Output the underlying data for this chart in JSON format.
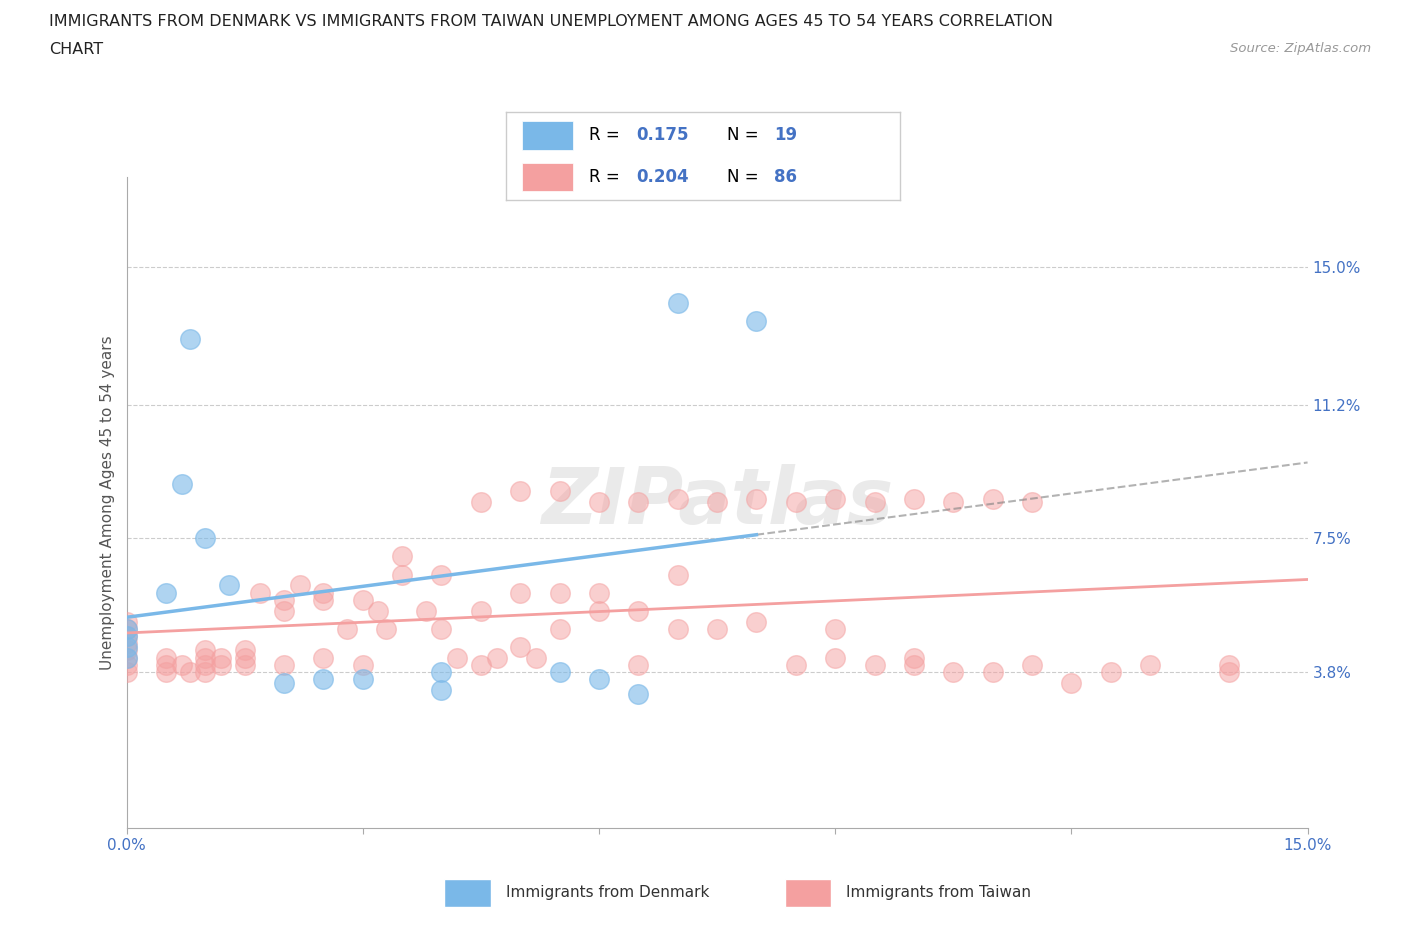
{
  "title_line1": "IMMIGRANTS FROM DENMARK VS IMMIGRANTS FROM TAIWAN UNEMPLOYMENT AMONG AGES 45 TO 54 YEARS CORRELATION",
  "title_line2": "CHART",
  "source_text": "Source: ZipAtlas.com",
  "ylabel": "Unemployment Among Ages 45 to 54 years",
  "xlim": [
    0.0,
    0.15
  ],
  "ylim": [
    -0.005,
    0.175
  ],
  "right_yticks": [
    0.038,
    0.075,
    0.112,
    0.15
  ],
  "right_yticklabels": [
    "3.8%",
    "7.5%",
    "11.2%",
    "15.0%"
  ],
  "denmark_color": "#7ab8e8",
  "taiwan_color": "#f4a0a0",
  "denmark_scatter_x": [
    0.0,
    0.0,
    0.0,
    0.0,
    0.005,
    0.007,
    0.008,
    0.01,
    0.013,
    0.02,
    0.025,
    0.03,
    0.04,
    0.04,
    0.055,
    0.06,
    0.065,
    0.07,
    0.08
  ],
  "denmark_scatter_y": [
    0.042,
    0.045,
    0.048,
    0.05,
    0.06,
    0.09,
    0.13,
    0.075,
    0.062,
    0.035,
    0.036,
    0.036,
    0.038,
    0.033,
    0.038,
    0.036,
    0.032,
    0.14,
    0.135
  ],
  "taiwan_scatter_x": [
    0.0,
    0.0,
    0.0,
    0.0,
    0.0,
    0.0,
    0.0,
    0.0,
    0.005,
    0.005,
    0.005,
    0.007,
    0.008,
    0.01,
    0.01,
    0.01,
    0.01,
    0.012,
    0.012,
    0.015,
    0.015,
    0.015,
    0.017,
    0.02,
    0.02,
    0.02,
    0.022,
    0.025,
    0.025,
    0.025,
    0.028,
    0.03,
    0.03,
    0.032,
    0.033,
    0.035,
    0.035,
    0.038,
    0.04,
    0.04,
    0.042,
    0.045,
    0.045,
    0.047,
    0.05,
    0.05,
    0.052,
    0.055,
    0.055,
    0.06,
    0.06,
    0.065,
    0.065,
    0.07,
    0.07,
    0.075,
    0.08,
    0.085,
    0.09,
    0.09,
    0.095,
    0.1,
    0.1,
    0.105,
    0.11,
    0.115,
    0.12,
    0.125,
    0.13,
    0.14,
    0.14,
    0.045,
    0.05,
    0.055,
    0.06,
    0.065,
    0.07,
    0.075,
    0.08,
    0.085,
    0.09,
    0.095,
    0.1,
    0.105,
    0.11,
    0.115
  ],
  "taiwan_scatter_y": [
    0.038,
    0.04,
    0.042,
    0.044,
    0.046,
    0.048,
    0.05,
    0.052,
    0.038,
    0.04,
    0.042,
    0.04,
    0.038,
    0.04,
    0.042,
    0.044,
    0.038,
    0.04,
    0.042,
    0.04,
    0.042,
    0.044,
    0.06,
    0.055,
    0.058,
    0.04,
    0.062,
    0.06,
    0.058,
    0.042,
    0.05,
    0.058,
    0.04,
    0.055,
    0.05,
    0.065,
    0.07,
    0.055,
    0.065,
    0.05,
    0.042,
    0.055,
    0.04,
    0.042,
    0.06,
    0.045,
    0.042,
    0.06,
    0.05,
    0.055,
    0.06,
    0.055,
    0.04,
    0.05,
    0.065,
    0.05,
    0.052,
    0.04,
    0.042,
    0.05,
    0.04,
    0.04,
    0.042,
    0.038,
    0.038,
    0.04,
    0.035,
    0.038,
    0.04,
    0.04,
    0.038,
    0.085,
    0.088,
    0.088,
    0.085,
    0.085,
    0.086,
    0.085,
    0.086,
    0.085,
    0.086,
    0.085,
    0.086,
    0.085,
    0.086,
    0.085
  ],
  "watermark_text": "ZIPatlas",
  "background_color": "#ffffff",
  "grid_color": "#cccccc",
  "tick_color": "#4472c4",
  "axis_color": "#aaaaaa"
}
